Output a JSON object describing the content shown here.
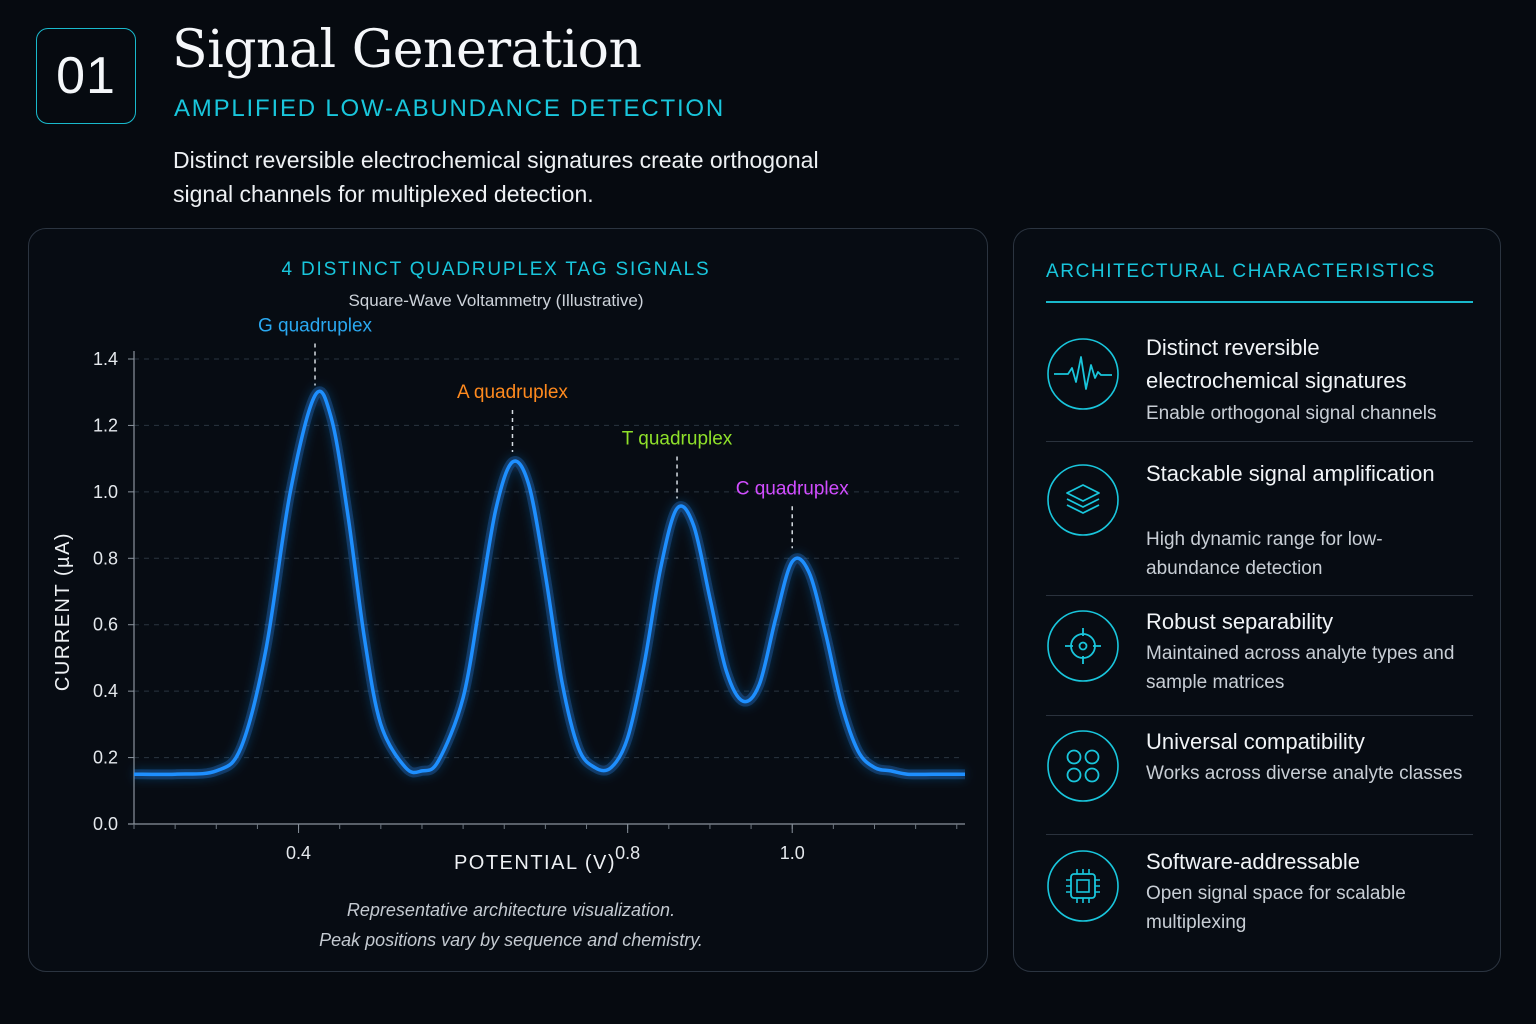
{
  "header": {
    "number": "01",
    "title": "Signal Generation",
    "subtitle": "AMPLIFIED LOW-ABUNDANCE DETECTION",
    "description": "Distinct reversible electrochemical signatures create orthogonal signal channels for multiplexed detection."
  },
  "chart_data": {
    "type": "line",
    "title": "4 DISTINCT QUADRUPLEX TAG SIGNALS",
    "subtitle": "Square-Wave Voltammetry (Illustrative)",
    "xlabel": "POTENTIAL (V)",
    "ylabel": "CURRENT (µA)",
    "xlim": [
      0.2,
      1.21
    ],
    "ylim": [
      0,
      1.4
    ],
    "x_ticks": [
      0.4,
      0.8,
      1.0
    ],
    "x_tick_labels": [
      "0.4",
      "0.8",
      "1.0"
    ],
    "y_ticks": [
      0.0,
      0.2,
      0.4,
      0.6,
      0.8,
      1.0,
      1.2,
      1.4
    ],
    "y_tick_labels": [
      "0.0",
      "0.2",
      "0.4",
      "0.6",
      "0.8",
      "1.0",
      "1.2",
      "1.4"
    ],
    "grid": "horizontal dashed",
    "baseline": 0.15,
    "series": [
      {
        "x": [
          0.2,
          0.25,
          0.3,
          0.33,
          0.36,
          0.39,
          0.42,
          0.44,
          0.46,
          0.48,
          0.5,
          0.53,
          0.55,
          0.57,
          0.6,
          0.62,
          0.64,
          0.66,
          0.68,
          0.7,
          0.72,
          0.74,
          0.76,
          0.78,
          0.8,
          0.82,
          0.84,
          0.86,
          0.88,
          0.9,
          0.92,
          0.94,
          0.96,
          0.98,
          1.0,
          1.02,
          1.04,
          1.06,
          1.08,
          1.1,
          1.12,
          1.14,
          1.17,
          1.21
        ],
        "values": [
          0.15,
          0.15,
          0.16,
          0.23,
          0.52,
          1.0,
          1.29,
          1.22,
          0.93,
          0.56,
          0.3,
          0.17,
          0.16,
          0.19,
          0.38,
          0.66,
          0.95,
          1.09,
          1.02,
          0.75,
          0.43,
          0.23,
          0.17,
          0.17,
          0.26,
          0.48,
          0.77,
          0.95,
          0.9,
          0.68,
          0.46,
          0.37,
          0.42,
          0.62,
          0.79,
          0.76,
          0.58,
          0.36,
          0.22,
          0.17,
          0.16,
          0.15,
          0.15,
          0.15
        ],
        "color": "#1e8fff"
      }
    ],
    "annotations": [
      {
        "label": "G quadruplex",
        "x": 0.42,
        "y": 1.29,
        "color": "#2aa8f0"
      },
      {
        "label": "A quadruplex",
        "x": 0.66,
        "y": 1.09,
        "color": "#ff8a1e"
      },
      {
        "label": "T quadruplex",
        "x": 0.86,
        "y": 0.95,
        "color": "#8fe02a"
      },
      {
        "label": "C quadruplex",
        "x": 1.0,
        "y": 0.8,
        "color": "#d14dff"
      }
    ],
    "note": [
      "Representative architecture visualization.",
      "Peak positions vary by sequence and chemistry."
    ]
  },
  "sidebar": {
    "heading": "ARCHITECTURAL CHARACTERISTICS",
    "accent": "#19c6dc",
    "items": [
      {
        "icon": "waveform-icon",
        "title": "Distinct reversible electrochemical signatures",
        "desc": "Enable orthogonal signal channels"
      },
      {
        "icon": "layers-icon",
        "title": "Stackable signal amplification",
        "desc": "High dynamic range for low-abundance detection"
      },
      {
        "icon": "target-icon",
        "title": "Robust separability",
        "desc": "Maintained across analyte types and sample matrices"
      },
      {
        "icon": "grid-circles-icon",
        "title": "Universal compatibility",
        "desc": "Works across diverse analyte classes"
      },
      {
        "icon": "chip-icon",
        "title": "Software-addressable",
        "desc": "Open signal space for scalable multiplexing"
      }
    ]
  }
}
